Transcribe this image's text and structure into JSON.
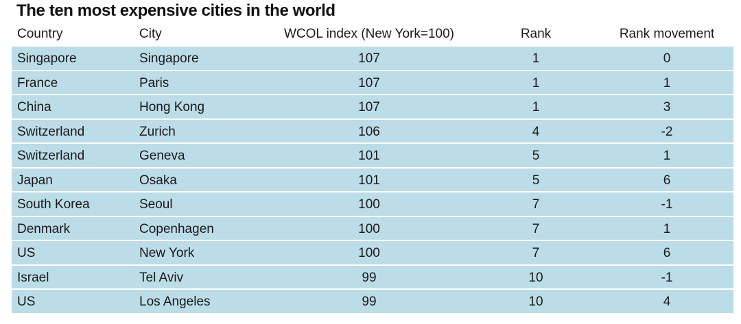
{
  "chart_data": {
    "type": "table",
    "title": "The ten most expensive cities in the world",
    "columns": [
      "Country",
      "City",
      "WCOL index (New York=100)",
      "Rank",
      "Rank movement"
    ],
    "rows": [
      [
        "Singapore",
        "Singapore",
        "107",
        "1",
        "0"
      ],
      [
        "France",
        "Paris",
        "107",
        "1",
        "1"
      ],
      [
        "China",
        "Hong Kong",
        "107",
        "1",
        "3"
      ],
      [
        "Switzerland",
        "Zurich",
        "106",
        "4",
        "-2"
      ],
      [
        "Switzerland",
        "Geneva",
        "101",
        "5",
        "1"
      ],
      [
        "Japan",
        "Osaka",
        "101",
        "5",
        "6"
      ],
      [
        "South Korea",
        "Seoul",
        "100",
        "7",
        "-1"
      ],
      [
        "Denmark",
        "Copenhagen",
        "100",
        "7",
        "1"
      ],
      [
        "US",
        "New York",
        "100",
        "7",
        "6"
      ],
      [
        "Israel",
        "Tel Aviv",
        "99",
        "10",
        "-1"
      ],
      [
        "US",
        "Los Angeles",
        "99",
        "10",
        "4"
      ]
    ]
  },
  "colors": {
    "row_fill": "#bcdce8",
    "text": "#1a1a1a"
  }
}
